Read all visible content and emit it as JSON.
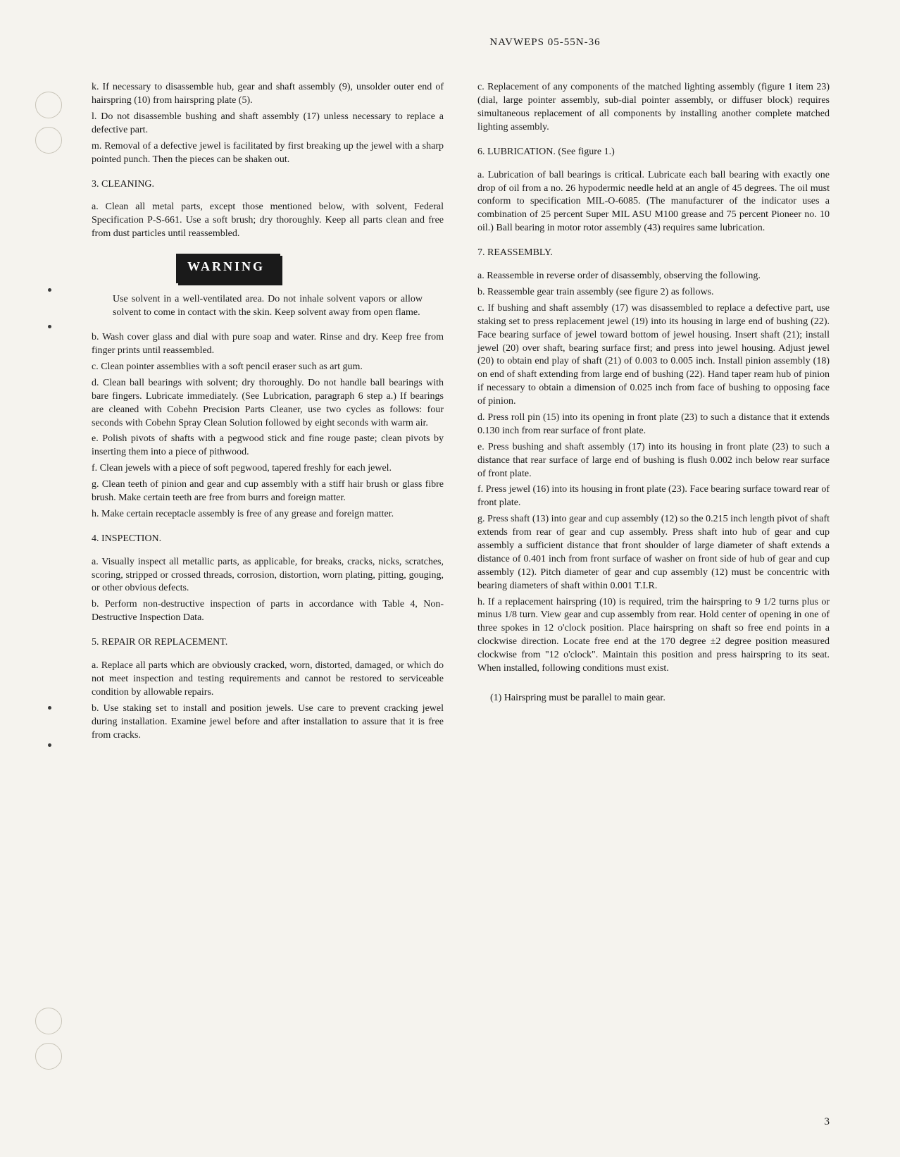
{
  "header": "NAVWEPS 05-55N-36",
  "page_number": "3",
  "warning_label": "WARNING",
  "left_column": {
    "p_k": "k. If necessary to disassemble hub, gear and shaft assembly (9), unsolder outer end of hairspring (10) from hairspring plate (5).",
    "p_l": "l. Do not disassemble bushing and shaft assembly (17) unless necessary to replace a defective part.",
    "p_m": "m. Removal of a defective jewel is facilitated by first breaking up the jewel with a sharp pointed punch. Then the pieces can be shaken out.",
    "s3_heading": "3. CLEANING.",
    "s3_a": "a. Clean all metal parts, except those mentioned below, with solvent, Federal Specification P-S-661. Use a soft brush; dry thoroughly. Keep all parts clean and free from dust particles until reassembled.",
    "warning_text": "Use solvent in a well-ventilated area. Do not inhale solvent vapors or allow solvent to come in contact with the skin. Keep solvent away from open flame.",
    "s3_b": "b. Wash cover glass and dial with pure soap and water. Rinse and dry. Keep free from finger prints until reassembled.",
    "s3_c": "c. Clean pointer assemblies with a soft pencil eraser such as art gum.",
    "s3_d": "d. Clean ball bearings with solvent; dry thoroughly. Do not handle ball bearings with bare fingers. Lubricate immediately. (See Lubrication, paragraph 6 step a.) If bearings are cleaned with Cobehn Precision Parts Cleaner, use two cycles as follows: four seconds with Cobehn Spray Clean Solution followed by eight seconds with warm air.",
    "s3_e": "e. Polish pivots of shafts with a pegwood stick and fine rouge paste; clean pivots by inserting them into a piece of pithwood.",
    "s3_f": "f. Clean jewels with a piece of soft pegwood, tapered freshly for each jewel.",
    "s3_g": "g. Clean teeth of pinion and gear and cup assembly with a stiff hair brush or glass fibre brush. Make certain teeth are free from burrs and foreign matter.",
    "s3_h": "h. Make certain receptacle assembly is free of any grease and foreign matter.",
    "s4_heading": "4. INSPECTION.",
    "s4_a": "a. Visually inspect all metallic parts, as applicable, for breaks, cracks, nicks, scratches, scoring, stripped or crossed threads, corrosion, distortion, worn plating, pitting, gouging, or other obvious defects.",
    "s4_b": "b. Perform non-destructive inspection of parts in accordance with Table 4, Non-Destructive Inspection Data.",
    "s5_heading": "5. REPAIR OR REPLACEMENT.",
    "s5_a": "a. Replace all parts which are obviously cracked, worn, distorted, damaged, or which do not meet inspection and testing requirements and cannot be restored to serviceable condition by allowable repairs.",
    "s5_b": "b. Use staking set to install and position jewels. Use care to prevent cracking jewel during installation. Examine jewel before and after installation to assure that it is free from cracks."
  },
  "right_column": {
    "s5_c": "c. Replacement of any components of the matched lighting assembly (figure 1 item 23) (dial, large pointer assembly, sub-dial pointer assembly, or diffuser block) requires simultaneous replacement of all components by installing another complete matched lighting assembly.",
    "s6_heading": "6. LUBRICATION. (See figure 1.)",
    "s6_a": "a. Lubrication of ball bearings is critical. Lubricate each ball bearing with exactly one drop of oil from a no. 26 hypodermic needle held at an angle of 45 degrees. The oil must conform to specification MIL-O-6085. (The manufacturer of the indicator uses a combination of 25 percent Super MIL ASU M100 grease and 75 percent Pioneer no. 10 oil.) Ball bearing in motor rotor assembly (43) requires same lubrication.",
    "s7_heading": "7. REASSEMBLY.",
    "s7_a": "a. Reassemble in reverse order of disassembly, observing the following.",
    "s7_b": "b. Reassemble gear train assembly (see figure 2) as follows.",
    "s7_c": "c. If bushing and shaft assembly (17) was disassembled to replace a defective part, use staking set to press replacement jewel (19) into its housing in large end of bushing (22). Face bearing surface of jewel toward bottom of jewel housing. Insert shaft (21); install jewel (20) over shaft, bearing surface first; and press into jewel housing. Adjust jewel (20) to obtain end play of shaft (21) of 0.003 to 0.005 inch. Install pinion assembly (18) on end of shaft extending from large end of bushing (22). Hand taper ream hub of pinion if necessary to obtain a dimension of 0.025 inch from face of bushing to opposing face of pinion.",
    "s7_d": "d. Press roll pin (15) into its opening in front plate (23) to such a distance that it extends 0.130 inch from rear surface of front plate.",
    "s7_e": "e. Press bushing and shaft assembly (17) into its housing in front plate (23) to such a distance that rear surface of large end of bushing is flush 0.002 inch below rear surface of front plate.",
    "s7_f": "f. Press jewel (16) into its housing in front plate (23). Face bearing surface toward rear of front plate.",
    "s7_g": "g. Press shaft (13) into gear and cup assembly (12) so the 0.215 inch length pivot of shaft extends from rear of gear and cup assembly. Press shaft into hub of gear and cup assembly a sufficient distance that front shoulder of large diameter of shaft extends a distance of 0.401 inch from front surface of washer on front side of hub of gear and cup assembly (12). Pitch diameter of gear and cup assembly (12) must be concentric with bearing diameters of shaft within 0.001 T.I.R.",
    "s7_h": "h. If a replacement hairspring (10) is required, trim the hairspring to 9 1/2 turns plus or minus 1/8 turn. View gear and cup assembly from rear. Hold center of opening in one of three spokes in 12 o'clock position. Place hairspring on shaft so free end points in a clockwise direction. Locate free end at the 170 degree ±2 degree position measured clockwise from \"12 o'clock\". Maintain this position and press hairspring to its seat. When installed, following conditions must exist.",
    "s7_h1": "(1) Hairspring must be parallel to main gear."
  }
}
